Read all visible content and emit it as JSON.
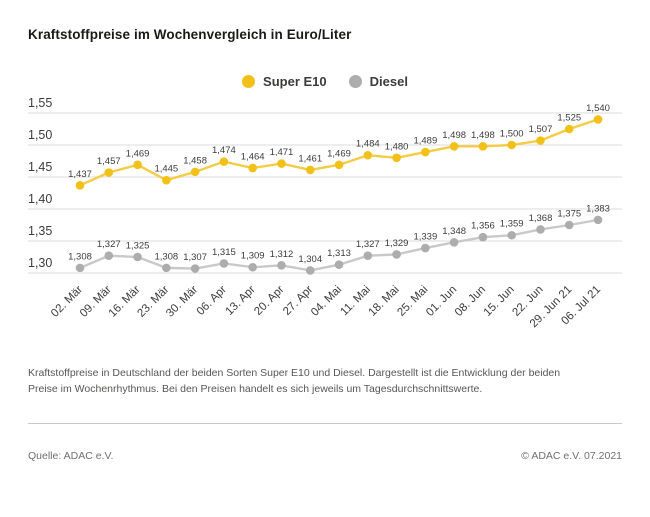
{
  "page": {
    "title": "Kraftstoffpreise im Wochenvergleich in Euro/Liter",
    "description": "Kraftstoffpreise in Deutschland der beiden Sorten Super E10 und Diesel. Dargestellt ist die Entwicklung der beiden Preise im Wochenrhythmus. Bei den Preisen handelt es sich jeweils um Tagesdurchschnittswerte.",
    "source": "Quelle: ADAC e.V.",
    "copyright": "© ADAC e.V. 07.2021"
  },
  "legend": {
    "items": [
      {
        "label": "Super E10",
        "color": "#F2C119"
      },
      {
        "label": "Diesel",
        "color": "#ADADAD"
      }
    ]
  },
  "colors": {
    "grid": "#DBDBDB",
    "tick_text": "#3C3C3B",
    "data_label_text": "#3C3C3B"
  },
  "chart_data": {
    "type": "line",
    "title": "Kraftstoffpreise im Wochenvergleich in Euro/Liter",
    "categories": [
      "02. Mär",
      "09. Mär",
      "16. Mär",
      "23. Mär",
      "30. Mär",
      "06. Apr",
      "13. Apr",
      "20. Apr",
      "27. Apr",
      "04. Mai",
      "11. Mai",
      "18. Mai",
      "25. Mai",
      "01. Jun",
      "08. Jun",
      "15. Jun",
      "22. Jun",
      "29. Jun 21",
      "06. Jul 21"
    ],
    "series": [
      {
        "name": "Super E10",
        "values": [
          1.437,
          1.457,
          1.469,
          1.445,
          1.458,
          1.474,
          1.464,
          1.471,
          1.461,
          1.469,
          1.484,
          1.48,
          1.489,
          1.498,
          1.498,
          1.5,
          1.507,
          1.525,
          1.54
        ],
        "marker_color": "#F2C119",
        "line_color": "#F5CC45"
      },
      {
        "name": "Diesel",
        "values": [
          1.308,
          1.327,
          1.325,
          1.308,
          1.307,
          1.315,
          1.309,
          1.312,
          1.304,
          1.313,
          1.327,
          1.329,
          1.339,
          1.348,
          1.356,
          1.359,
          1.368,
          1.375,
          1.383
        ],
        "marker_color": "#ADADAD",
        "line_color": "#C9C9C9"
      }
    ],
    "yticks": [
      1.55,
      1.5,
      1.45,
      1.4,
      1.35,
      1.3
    ],
    "ylim": [
      1.3,
      1.55
    ],
    "ylabel": "",
    "xlabel": "",
    "unit": "Euro/Liter",
    "decimal_separator": ",",
    "grid": true,
    "legend_position": "top-center"
  }
}
